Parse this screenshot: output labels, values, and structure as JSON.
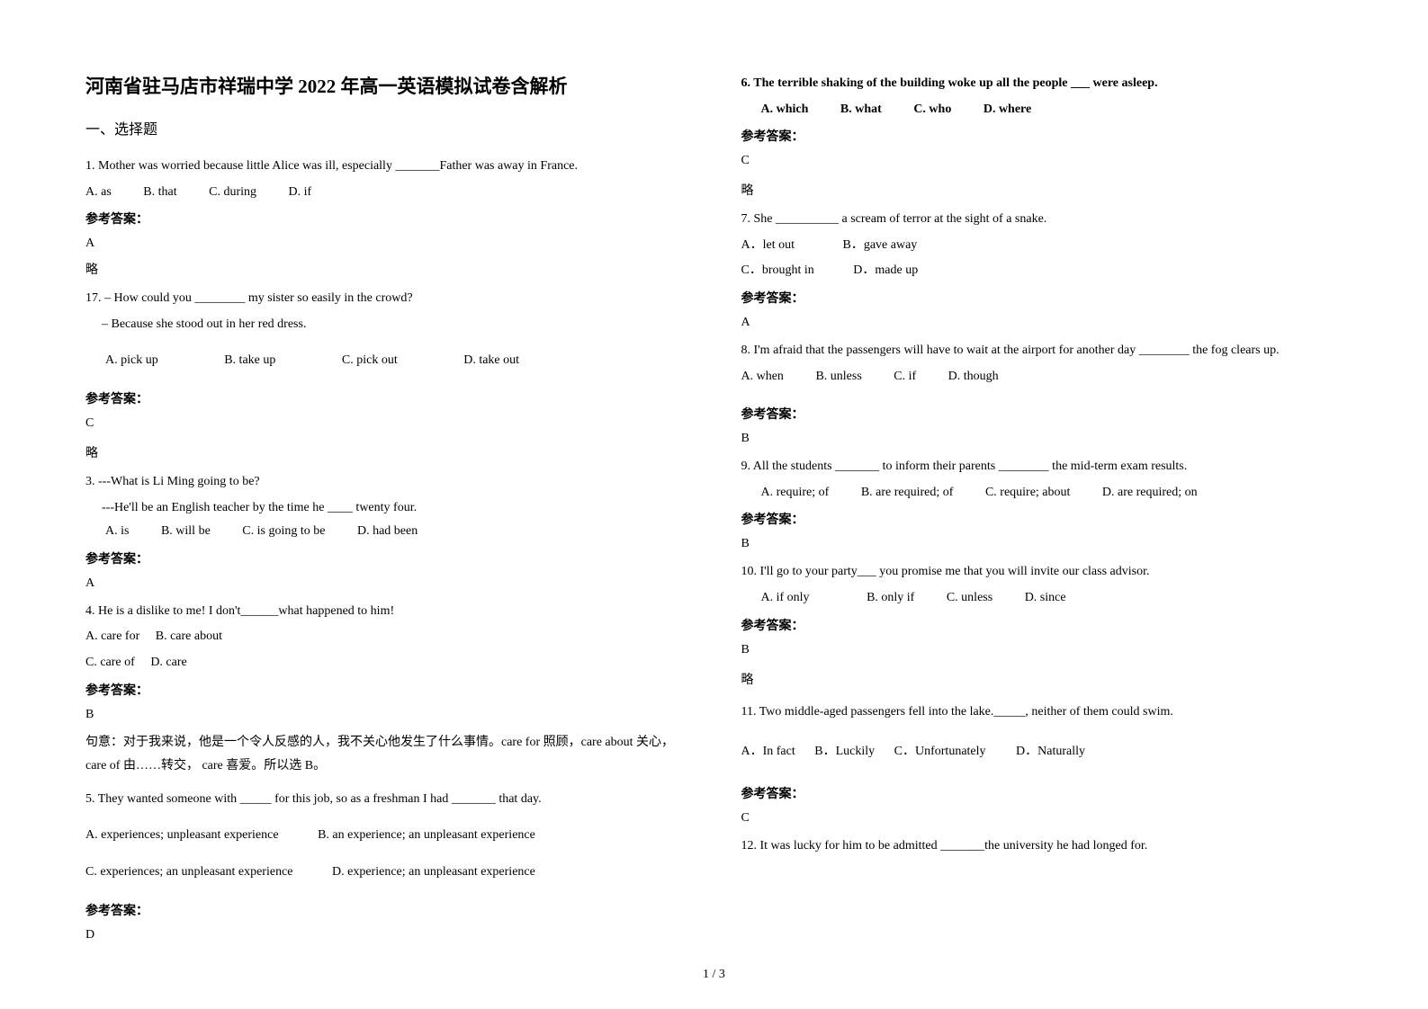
{
  "title": "河南省驻马店市祥瑞中学 2022 年高一英语模拟试卷含解析",
  "section1": "一、选择题",
  "q1": {
    "text": "1. Mother was worried because little Alice was ill, especially _______Father was away in France.",
    "a": "A. as",
    "b": "B. that",
    "c": "C. during",
    "d": "D. if",
    "ansLabel": "参考答案：",
    "ans": "A",
    "note": "略"
  },
  "q17": {
    "text": "17. – How could you ________ my sister so easily in the crowd?",
    "line2": "– Because she stood out in her red dress.",
    "a": "A. pick up",
    "b": "B. take up",
    "c": "C. pick out",
    "d": "D. take out",
    "ansLabel": "参考答案：",
    "ans": "C",
    "note": "略"
  },
  "q3": {
    "text": "3. ---What is Li Ming going to be?",
    "line2": "---He'll be an English teacher by the time he ____ twenty four.",
    "a": "A. is",
    "b": "B. will be",
    "c": "C. is going to be",
    "d": "D. had been",
    "ansLabel": "参考答案：",
    "ans": "A"
  },
  "q4": {
    "text": "4. He is a dislike to me! I don't______what happened to him!",
    "a": "A. care for",
    "b": "B. care about",
    "c": "C. care of",
    "d": "D. care",
    "ansLabel": "参考答案：",
    "ans": "B",
    "note": "句意：对于我来说，他是一个令人反感的人，我不关心他发生了什么事情。care for 照顾，care about 关心，care of 由……转交， care 喜爱。所以选 B。"
  },
  "q5": {
    "text": "5. They wanted someone with _____ for this job, so as a freshman I had _______ that day.",
    "a": "A. experiences; unpleasant experience",
    "b": "B. an experience; an unpleasant experience",
    "c": "C. experiences; an unpleasant experience",
    "d": "D. experience; an unpleasant experience",
    "ansLabel": "参考答案：",
    "ans": "D"
  },
  "q6": {
    "text": "6. The terrible shaking of the building woke up all the people ___ were asleep.",
    "a": "A. which",
    "b": "B. what",
    "c": "C. who",
    "d": "D. where",
    "ansLabel": "参考答案：",
    "ans": "C",
    "note": "略"
  },
  "q7": {
    "text": "7. She __________ a scream of terror at the sight of a snake.",
    "a": "A．let out",
    "b": "B．gave away",
    "c": "C．brought in",
    "d": "D．made up",
    "ansLabel": "参考答案：",
    "ans": "A"
  },
  "q8": {
    "text": "8.  I'm afraid that the passengers will have to wait at the airport for another day ________ the fog clears up.",
    "a": "A. when",
    "b": "B. unless",
    "c": "C. if",
    "d": "D. though",
    "ansLabel": "参考答案：",
    "ans": "B"
  },
  "q9": {
    "text": "9. All the students _______ to inform their parents ________ the mid-term exam results.",
    "a": "A. require; of",
    "b": "B. are required; of",
    "c": "C. require; about",
    "d": "D. are required; on",
    "ansLabel": "参考答案：",
    "ans": "B"
  },
  "q10": {
    "text": "10. I'll go to your party___ you promise me that you will invite our class advisor.",
    "a": "A. if only",
    "b": "B. only if",
    "c": "C. unless",
    "d": "D. since",
    "ansLabel": "参考答案：",
    "ans": "B",
    "note": "略"
  },
  "q11": {
    "text": "11.  Two middle-aged passengers fell into the lake._____, neither of them could swim.",
    "a": "A．In fact",
    "b": "B．Luckily",
    "c": "C．Unfortunately",
    "d": "D．Naturally",
    "ansLabel": "参考答案：",
    "ans": "C"
  },
  "q12": {
    "text": "12. It was lucky for him to be admitted _______the university he had longed for."
  },
  "footer": "1 / 3"
}
